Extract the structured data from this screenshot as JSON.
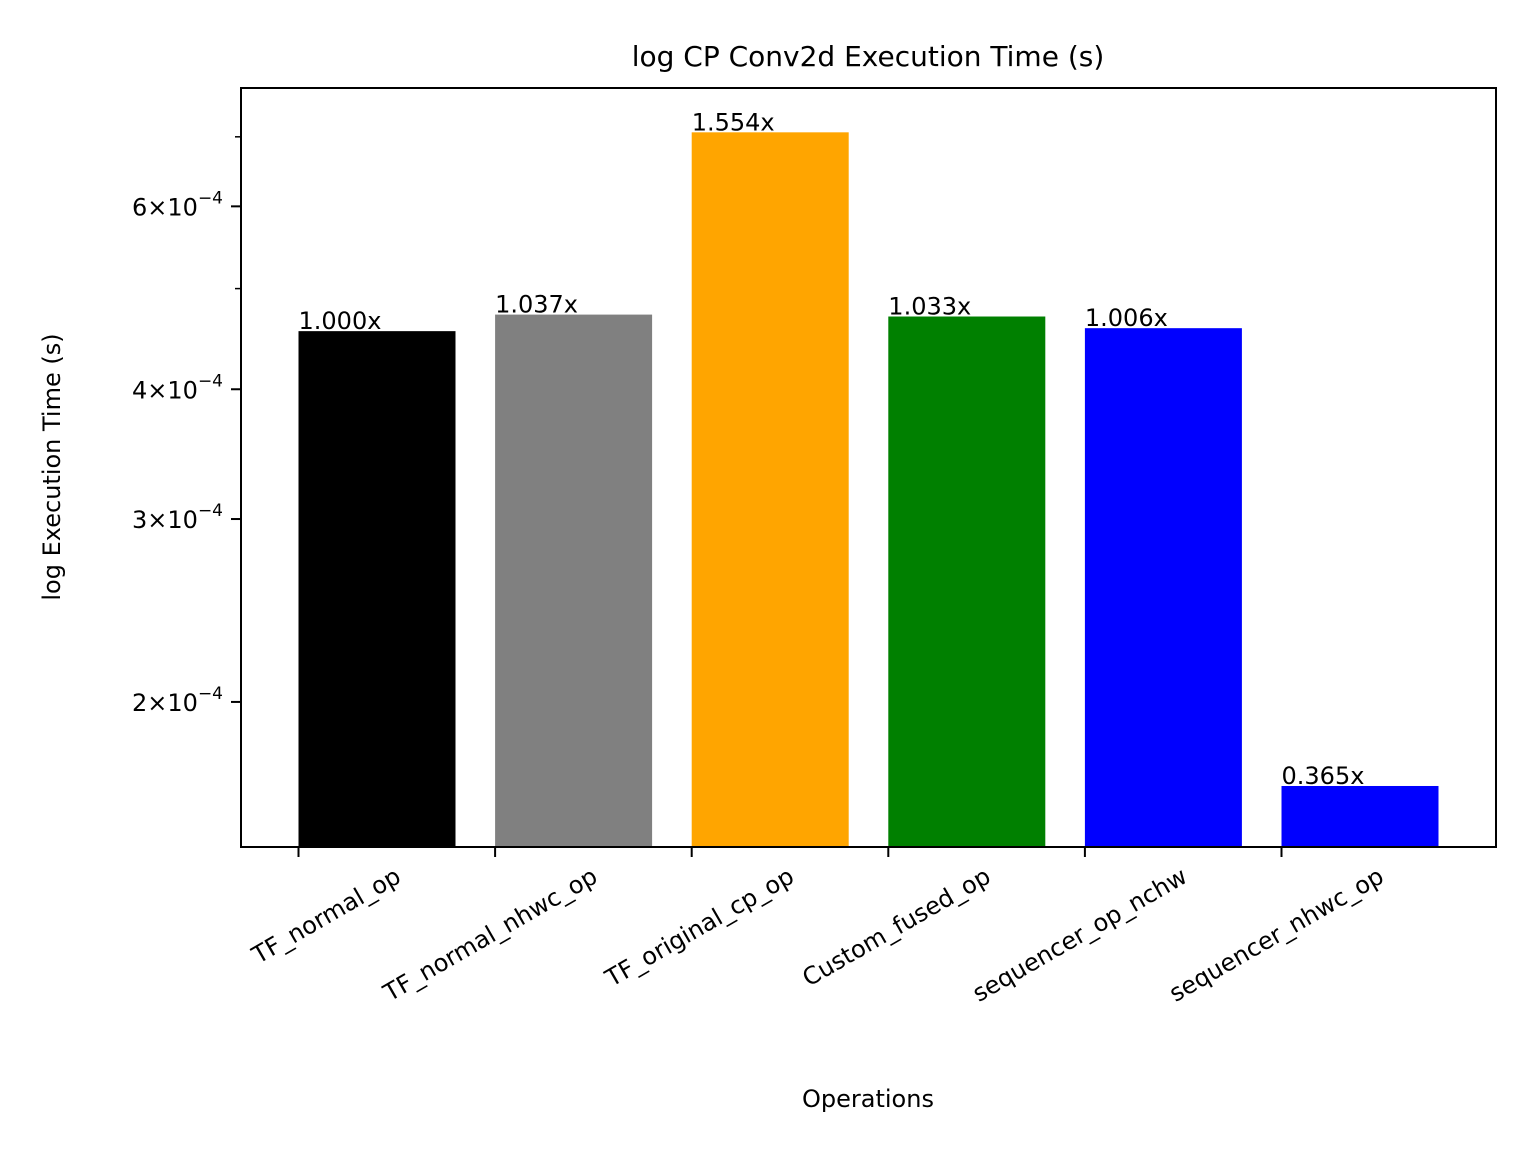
{
  "chart_data": {
    "type": "bar",
    "title": "log CP Conv2d Execution Time (s)",
    "xlabel": "Operations",
    "ylabel": "log Execution Time (s)",
    "yscale": "log",
    "ylim": [
      0.000145,
      0.00078
    ],
    "grid": false,
    "categories": [
      "TF_normal_op",
      "TF_normal_nhwc_op",
      "TF_original_cp_op",
      "Custom_fused_op",
      "sequencer_op_nchw",
      "sequencer_nhwc_op"
    ],
    "values": [
      0.000455,
      0.000472,
      0.000707,
      0.00047,
      0.000458,
      0.000166
    ],
    "colors": [
      "#000000",
      "#808080",
      "#ffa500",
      "#008000",
      "#0000ff",
      "#0000ff"
    ],
    "bar_labels": [
      "1.000x",
      "1.037x",
      "1.554x",
      "1.033x",
      "1.006x",
      "0.365x"
    ],
    "yticks": [
      {
        "value": 0.0002,
        "base": "2",
        "exp": "−4"
      },
      {
        "value": 0.0003,
        "base": "3",
        "exp": "−4"
      },
      {
        "value": 0.0004,
        "base": "4",
        "exp": "−4"
      },
      {
        "value": 0.0006,
        "base": "6",
        "exp": "−4"
      }
    ],
    "yminor_ticks": [
      0.0005,
      0.0007
    ]
  }
}
